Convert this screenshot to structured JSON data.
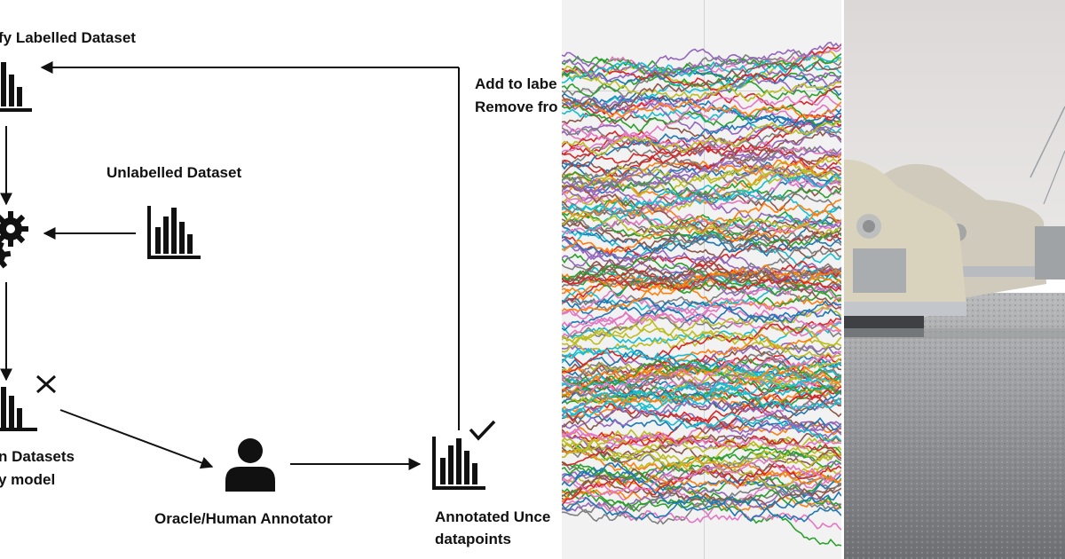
{
  "diagram": {
    "labels": {
      "labelled_dataset": "fy Labelled Dataset",
      "unlabelled_dataset": "Unlabelled Dataset",
      "uncertain_datasets_line1": "n Datasets",
      "uncertain_datasets_line2": "y model",
      "oracle": "Oracle/Human Annotator",
      "annotated_line1": "Annotated Unce",
      "annotated_line2": "datapoints",
      "add_line1": "Add to labe",
      "add_line2": "Remove fro"
    },
    "icons": {
      "labelled": "bar-chart-icon",
      "unlabelled": "bar-chart-icon",
      "model": "gears-icon",
      "uncertain": "bar-chart-icon",
      "uncertain_mark": "cross-icon",
      "oracle": "person-icon",
      "annotated": "bar-chart-icon",
      "annotated_mark": "check-icon"
    }
  },
  "line_plot": {
    "series_count": 180,
    "palette": [
      "#1f77b4",
      "#ff7f0e",
      "#2ca02c",
      "#d62728",
      "#9467bd",
      "#8c564b",
      "#e377c2",
      "#7f7f7f",
      "#bcbd22",
      "#17becf"
    ],
    "background": "#f2f2f2"
  },
  "photo": {
    "subject": "vintage-cars-parking-lot"
  }
}
